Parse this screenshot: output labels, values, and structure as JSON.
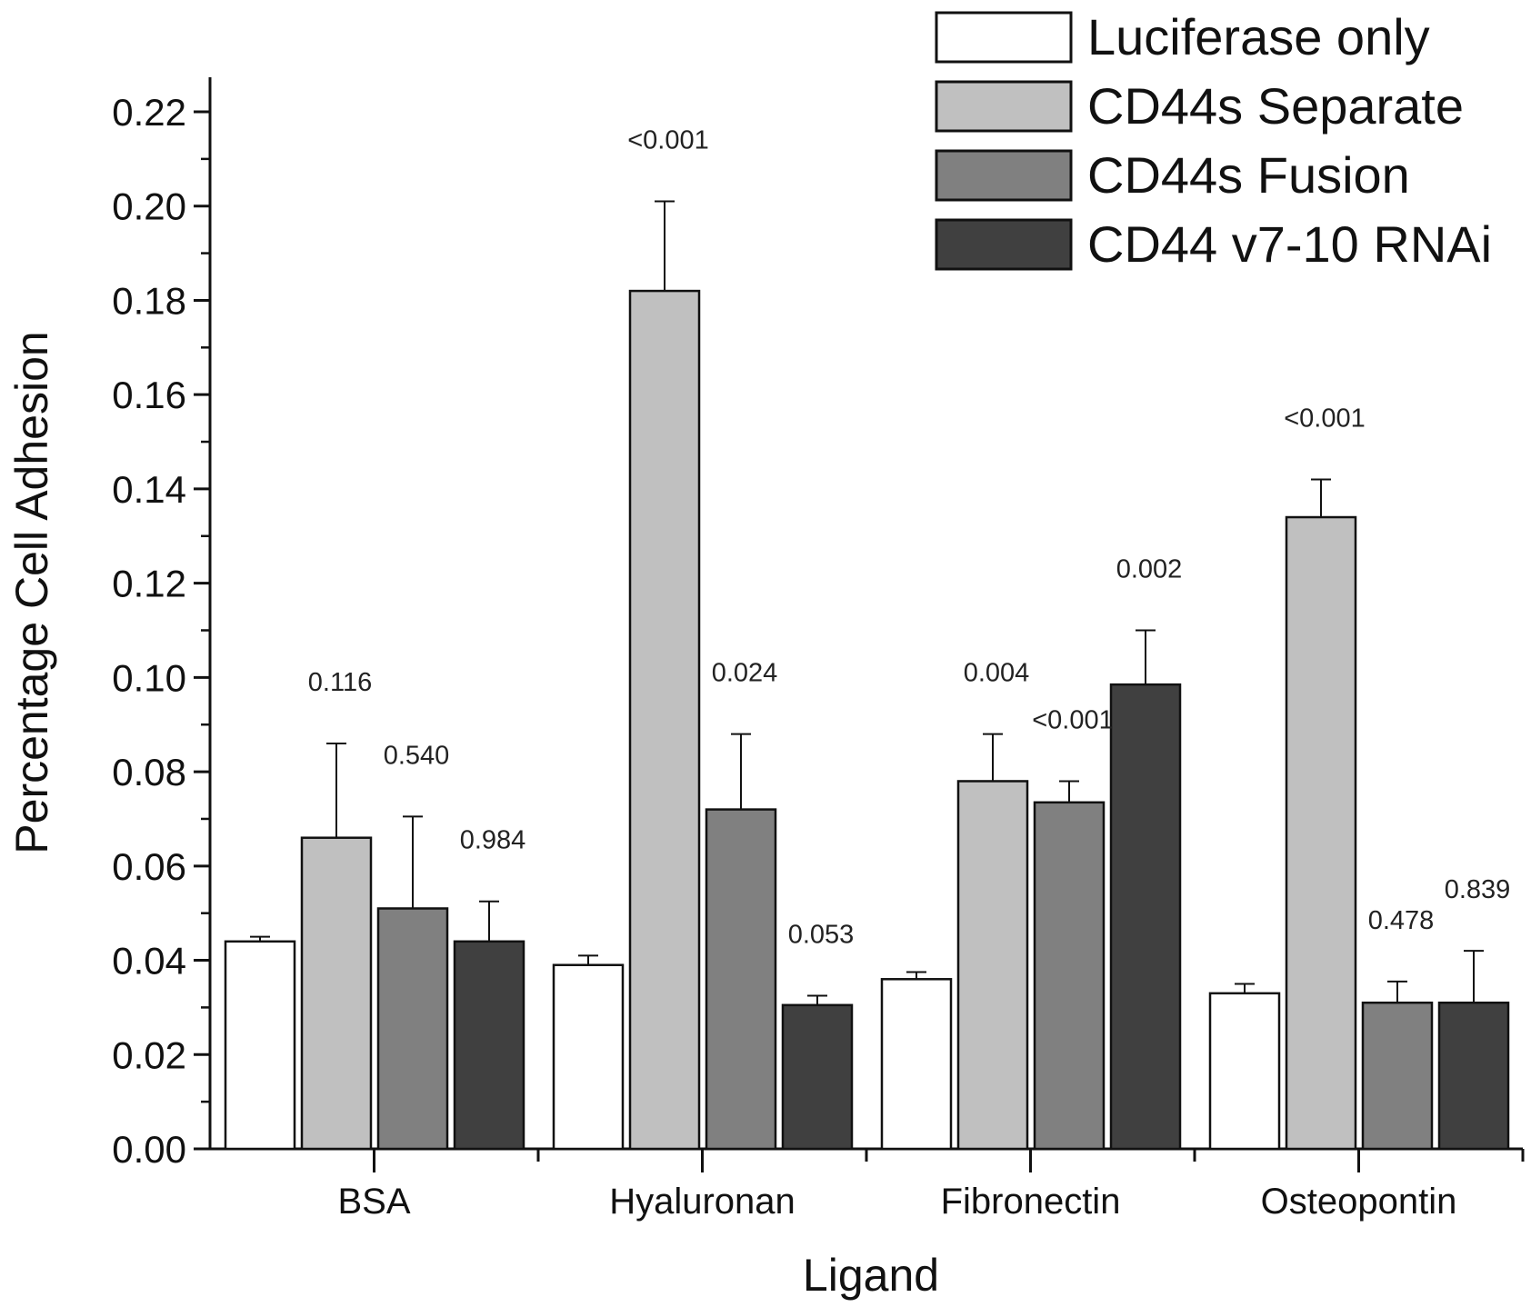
{
  "chart_data": {
    "type": "bar",
    "title": "",
    "xlabel": "Ligand",
    "ylabel": "Percentage Cell Adhesion",
    "ylim": [
      0,
      0.22
    ],
    "y_ticks": [
      "0.00",
      "0.02",
      "0.04",
      "0.06",
      "0.08",
      "0.10",
      "0.12",
      "0.14",
      "0.16",
      "0.18",
      "0.20",
      "0.22"
    ],
    "categories": [
      "BSA",
      "Hyaluronan",
      "Fibronectin",
      "Osteopontin"
    ],
    "legend_position": "top-right",
    "grid": false,
    "series": [
      {
        "name": "Luciferase only",
        "color": "#ffffff",
        "values": [
          0.044,
          0.039,
          0.036,
          0.033
        ],
        "errors": [
          0.001,
          0.002,
          0.0015,
          0.002
        ],
        "labels": [
          "",
          "",
          "",
          ""
        ]
      },
      {
        "name": "CD44s Separate",
        "color": "#c0c0c0",
        "values": [
          0.066,
          0.182,
          0.078,
          0.134
        ],
        "errors": [
          0.02,
          0.019,
          0.01,
          0.008
        ],
        "labels": [
          "0.116",
          "<0.001",
          "0.004",
          "<0.001"
        ]
      },
      {
        "name": "CD44s Fusion",
        "color": "#808080",
        "values": [
          0.051,
          0.072,
          0.0735,
          0.031
        ],
        "errors": [
          0.0195,
          0.016,
          0.0045,
          0.0045
        ],
        "labels": [
          "0.540",
          "0.024",
          "<0.001",
          "0.478"
        ]
      },
      {
        "name": "CD44 v7-10 RNAi",
        "color": "#404040",
        "values": [
          0.044,
          0.0305,
          0.0985,
          0.031
        ],
        "errors": [
          0.0085,
          0.002,
          0.0115,
          0.011
        ],
        "labels": [
          "0.984",
          "0.053",
          "0.002",
          "0.839"
        ]
      }
    ]
  }
}
